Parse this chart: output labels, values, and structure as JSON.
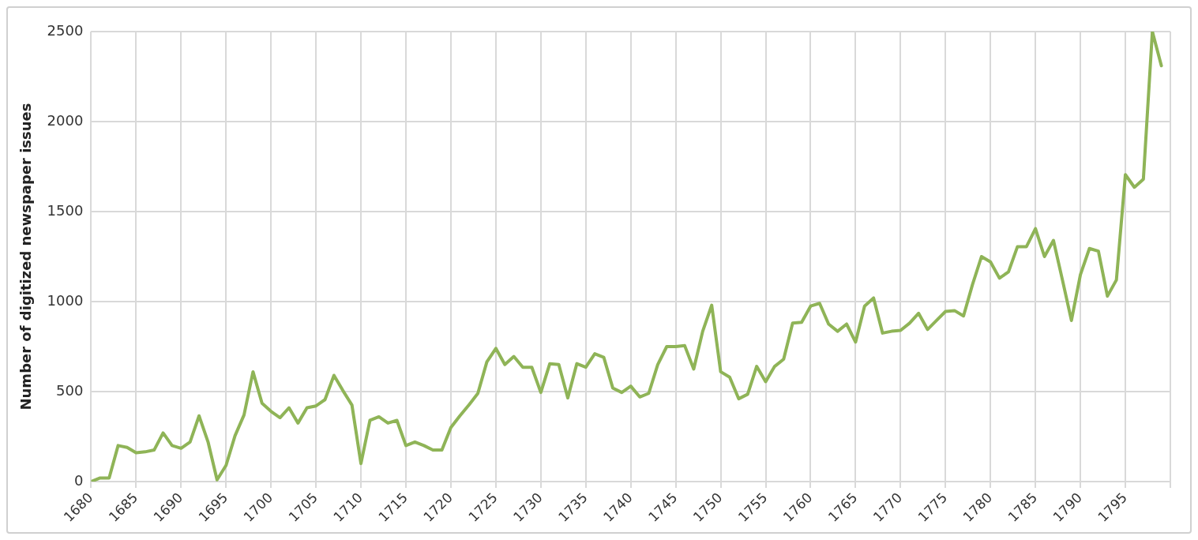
{
  "chart_data": {
    "type": "line",
    "ylabel": "Number of digitized newspaper issues",
    "x": [
      1680,
      1681,
      1682,
      1683,
      1684,
      1685,
      1686,
      1687,
      1688,
      1689,
      1690,
      1691,
      1692,
      1693,
      1694,
      1695,
      1696,
      1697,
      1698,
      1699,
      1700,
      1701,
      1702,
      1703,
      1704,
      1705,
      1706,
      1707,
      1708,
      1709,
      1710,
      1711,
      1712,
      1713,
      1714,
      1715,
      1716,
      1717,
      1718,
      1719,
      1720,
      1721,
      1722,
      1723,
      1724,
      1725,
      1726,
      1727,
      1728,
      1729,
      1730,
      1731,
      1732,
      1733,
      1734,
      1735,
      1736,
      1737,
      1738,
      1739,
      1740,
      1741,
      1742,
      1743,
      1744,
      1745,
      1746,
      1747,
      1748,
      1749,
      1750,
      1751,
      1752,
      1753,
      1754,
      1755,
      1756,
      1757,
      1758,
      1759,
      1760,
      1761,
      1762,
      1763,
      1764,
      1765,
      1766,
      1767,
      1768,
      1769,
      1770,
      1771,
      1772,
      1773,
      1774,
      1775,
      1776,
      1777,
      1778,
      1779,
      1780,
      1781,
      1782,
      1783,
      1784,
      1785,
      1786,
      1787,
      1788,
      1789,
      1790,
      1791,
      1792,
      1793,
      1794,
      1795,
      1796,
      1797,
      1798,
      1799
    ],
    "series": [
      {
        "color": "#8fb457",
        "values": [
          0,
          20,
          20,
          200,
          190,
          160,
          165,
          175,
          270,
          200,
          185,
          220,
          365,
          220,
          10,
          90,
          255,
          370,
          610,
          435,
          390,
          355,
          410,
          325,
          410,
          420,
          455,
          590,
          505,
          425,
          100,
          340,
          360,
          325,
          340,
          200,
          220,
          200,
          175,
          175,
          300,
          365,
          425,
          490,
          665,
          740,
          650,
          695,
          635,
          635,
          495,
          655,
          650,
          465,
          655,
          635,
          710,
          690,
          520,
          495,
          530,
          470,
          490,
          650,
          750,
          750,
          755,
          625,
          835,
          980,
          610,
          580,
          460,
          485,
          640,
          555,
          640,
          680,
          880,
          885,
          975,
          990,
          875,
          835,
          875,
          775,
          975,
          1020,
          825,
          835,
          840,
          880,
          935,
          845,
          895,
          945,
          950,
          920,
          1095,
          1250,
          1220,
          1130,
          1165,
          1305,
          1305,
          1405,
          1250,
          1340,
          1120,
          895,
          1150,
          1295,
          1280,
          1030,
          1120,
          1705,
          1635,
          1680,
          2500,
          2310
        ]
      }
    ],
    "xlim": [
      1680,
      1800
    ],
    "xticks": [
      1680,
      1685,
      1690,
      1695,
      1700,
      1705,
      1710,
      1715,
      1720,
      1725,
      1730,
      1735,
      1740,
      1745,
      1750,
      1755,
      1760,
      1765,
      1770,
      1775,
      1780,
      1785,
      1790,
      1795,
      {
        "value": 1800,
        "label": null
      }
    ],
    "ylim": [
      0,
      2500
    ],
    "yticks": [
      0,
      500,
      1000,
      1500,
      2000,
      2500
    ],
    "grid": true,
    "legend": false,
    "marker": "none",
    "line_style": "solid"
  }
}
